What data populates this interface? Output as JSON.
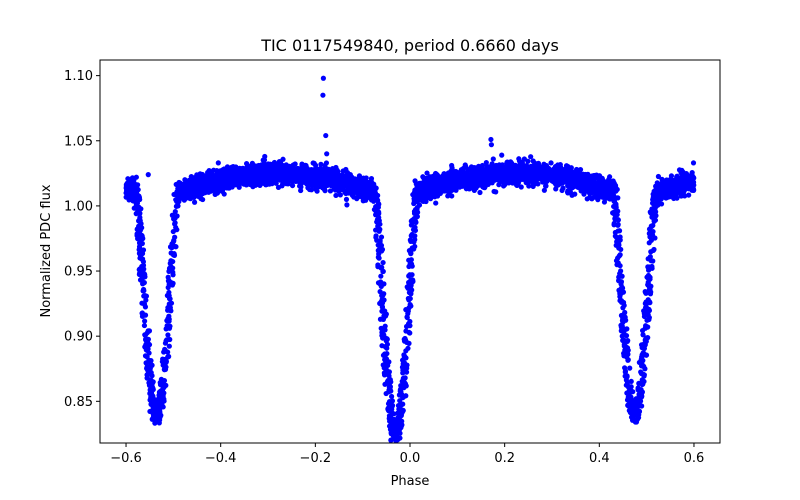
{
  "chart_data": {
    "type": "scatter",
    "title": "TIC 0117549840, period 0.6660 days",
    "xlabel": "Phase",
    "ylabel": "Normalized PDC flux",
    "xlim": [
      -0.655,
      0.655
    ],
    "ylim": [
      0.818,
      1.112
    ],
    "xticks": [
      -0.6,
      -0.4,
      -0.2,
      0.0,
      0.2,
      0.4,
      0.6
    ],
    "xtick_labels": [
      "−0.6",
      "−0.4",
      "−0.2",
      "0.0",
      "0.2",
      "0.4",
      "0.6"
    ],
    "yticks": [
      0.85,
      0.9,
      0.95,
      1.0,
      1.05,
      1.1
    ],
    "ytick_labels": [
      "0.85",
      "0.90",
      "0.95",
      "1.00",
      "1.05",
      "1.10"
    ],
    "grid": false,
    "series": [
      {
        "name": "PDC flux",
        "color": "#0000ff",
        "marker": "circle",
        "model": {
          "phase_range": [
            -0.6,
            0.6
          ],
          "period_phase": 0.5,
          "baseline": 1.0,
          "out_of_eclipse_max": 1.02,
          "out_of_eclipse_min_at_phase_limits": 1.008,
          "primary_eclipse_center": -0.03,
          "primary_eclipse_min_flux": 0.827,
          "secondary_eclipse_center": -0.535,
          "secondary_eclipse_center_repeat": 0.475,
          "secondary_eclipse_min_flux": 0.843,
          "eclipse_half_width": 0.045,
          "scatter": 0.004
        },
        "outliers": [
          {
            "x": -0.183,
            "y": 1.098
          },
          {
            "x": -0.184,
            "y": 1.085
          },
          {
            "x": -0.178,
            "y": 1.054
          },
          {
            "x": -0.176,
            "y": 1.04
          },
          {
            "x": 0.171,
            "y": 1.051
          },
          {
            "x": 0.172,
            "y": 1.047
          },
          {
            "x": 0.176,
            "y": 1.036
          },
          {
            "x": 0.599,
            "y": 1.033
          },
          {
            "x": -0.405,
            "y": 1.033
          },
          {
            "x": -0.553,
            "y": 1.024
          },
          {
            "x": 0.298,
            "y": 1.033
          },
          {
            "x": 0.283,
            "y": 1.032
          },
          {
            "x": 0.088,
            "y": 1.031
          },
          {
            "x": 0.238,
            "y": 1.03
          },
          {
            "x": 0.118,
            "y": 1.03
          },
          {
            "x": 0.352,
            "y": 1.028
          }
        ]
      }
    ]
  }
}
